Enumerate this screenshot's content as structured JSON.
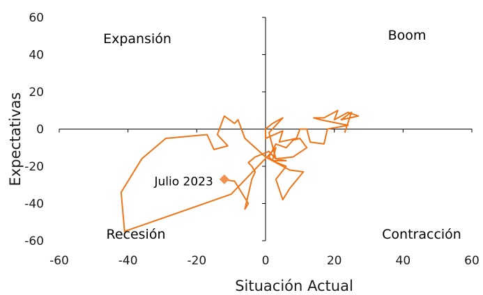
{
  "chart_data": {
    "type": "line",
    "xlabel": "Situación Actual",
    "ylabel": "Expectativas",
    "xlim": [
      -60,
      60
    ],
    "ylim": [
      -60,
      60
    ],
    "x_ticks": [
      -60,
      -40,
      -20,
      0,
      20,
      40,
      60
    ],
    "y_ticks": [
      -60,
      -40,
      -20,
      0,
      20,
      40,
      60
    ],
    "grid": false,
    "colors": {
      "series": "#f07316",
      "marker": "#f0924d",
      "axis": "#000000"
    },
    "quadrant_labels": {
      "top_left": "Expansión",
      "top_right": "Boom",
      "bottom_left": "Recesión",
      "bottom_right": "Contracción"
    },
    "annotation": {
      "text": "Julio 2023",
      "x": -12,
      "y": -28
    },
    "series": [
      {
        "x": [
          23,
          25,
          22,
          27,
          24,
          20,
          21,
          17,
          14,
          16,
          24,
          18,
          17,
          13,
          12,
          10,
          9,
          4,
          5,
          0,
          0,
          2,
          5,
          1,
          3,
          8,
          12,
          10,
          8,
          6,
          3,
          1,
          2,
          6,
          3,
          5,
          7,
          11,
          7,
          0,
          -6,
          -8,
          -9,
          -12,
          -14,
          -11,
          -15,
          -17,
          -29,
          -36,
          -42,
          -41,
          -10,
          3,
          2,
          6,
          3,
          1,
          -3,
          -5,
          -4,
          -3,
          -4,
          -6,
          -5,
          -9,
          -13,
          -12
        ],
        "y": [
          -2,
          9,
          5,
          7,
          9,
          5,
          10,
          6,
          6,
          5,
          2,
          0,
          -8,
          -7,
          0,
          0,
          -5,
          -7,
          -1,
          -5,
          0,
          3,
          6,
          -2,
          -16,
          -15,
          -10,
          -5,
          -6,
          -10,
          -8,
          -15,
          -17,
          -20,
          -27,
          -38,
          -32,
          -23,
          -22,
          -15,
          -5,
          5,
          3,
          7,
          -3,
          -9,
          -11,
          -3,
          -5,
          -16,
          -34,
          -55,
          -35,
          -10,
          -17,
          -17,
          -16,
          -12,
          -15,
          -18,
          -20,
          -23,
          -27,
          -43,
          -40,
          -28,
          -27,
          -27
        ]
      }
    ]
  }
}
